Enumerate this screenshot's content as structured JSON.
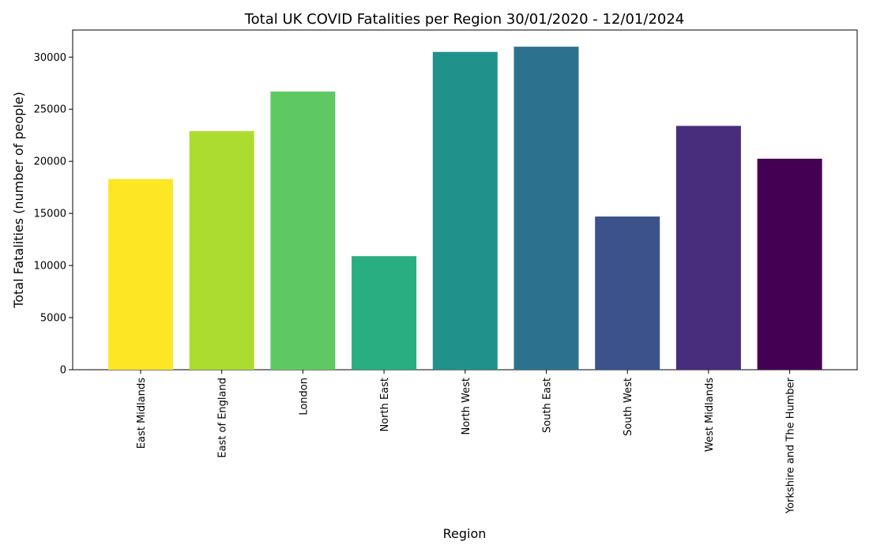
{
  "chart_data": {
    "type": "bar",
    "title": "Total UK COVID Fatalities per Region 30/01/2020 - 12/01/2024",
    "xlabel": "Region",
    "ylabel": "Total Fatalities (number of people)",
    "categories": [
      "East Midlands",
      "East of England",
      "London",
      "North East",
      "North West",
      "South East",
      "South West",
      "West Midlands",
      "Yorkshire and The Humber"
    ],
    "values": [
      18300,
      22900,
      26700,
      10900,
      30500,
      31000,
      14700,
      23400,
      20250
    ],
    "colors": [
      "#fde725",
      "#addc30",
      "#5ec962",
      "#28ae80",
      "#21918c",
      "#2c728e",
      "#3b528b",
      "#472d7b",
      "#440154"
    ],
    "ylim": [
      0,
      32600
    ],
    "yticks": [
      0,
      5000,
      10000,
      15000,
      20000,
      25000,
      30000
    ],
    "grid": false,
    "legend": "none"
  }
}
